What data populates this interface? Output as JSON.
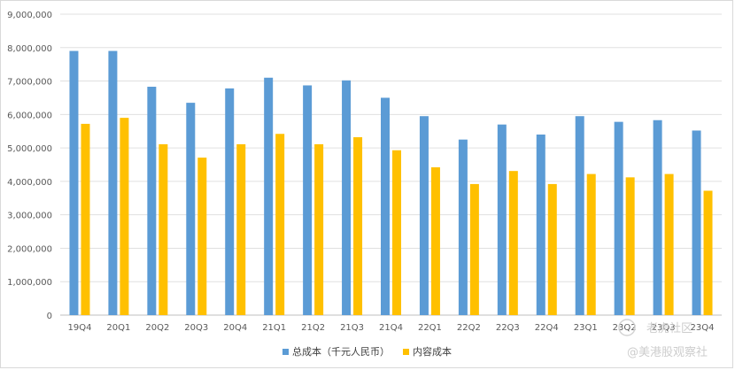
{
  "chart_data": {
    "type": "bar",
    "categories": [
      "19Q4",
      "20Q1",
      "20Q2",
      "20Q3",
      "20Q4",
      "21Q1",
      "21Q2",
      "21Q3",
      "21Q4",
      "22Q1",
      "22Q2",
      "22Q3",
      "22Q4",
      "23Q1",
      "23Q2",
      "23Q3",
      "23Q4"
    ],
    "series": [
      {
        "name": "总成本（千元人民币）",
        "color": "#5b9bd5",
        "values": [
          7900000,
          7900000,
          6830000,
          6350000,
          6780000,
          7100000,
          6870000,
          7020000,
          6500000,
          5950000,
          5250000,
          5700000,
          5400000,
          5950000,
          5780000,
          5830000,
          5520000
        ]
      },
      {
        "name": "内容成本",
        "color": "#ffc000",
        "values": [
          5720000,
          5900000,
          5110000,
          4710000,
          5110000,
          5420000,
          5110000,
          5320000,
          4930000,
          4420000,
          3920000,
          4310000,
          3920000,
          4220000,
          4120000,
          4220000,
          3720000
        ]
      }
    ],
    "ylim": [
      0,
      9000000
    ],
    "yticks": [
      "0",
      "1,000,000",
      "2,000,000",
      "3,000,000",
      "4,000,000",
      "5,000,000",
      "6,000,000",
      "7,000,000",
      "8,000,000",
      "9,000,000"
    ],
    "grid": true,
    "legend_position": "bottom-center"
  },
  "watermark": {
    "line1": "老虎社区",
    "line2": "@美港股观察社"
  }
}
